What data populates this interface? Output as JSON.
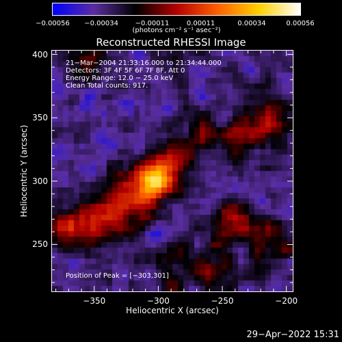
{
  "chart_data": {
    "type": "heatmap",
    "title": "Reconstructed RHESSI Image",
    "xlabel": "Heliocentric X (arcsec)",
    "ylabel": "Heliocentric Y (arcsec)",
    "xlim": [
      -383,
      -195
    ],
    "ylim": [
      213,
      403
    ],
    "x_ticks": [
      "−350",
      "−300",
      "−250",
      "−200"
    ],
    "x_tick_values": [
      -350,
      -300,
      -250,
      -200
    ],
    "y_ticks": [
      "250",
      "300",
      "350",
      "400"
    ],
    "y_tick_values": [
      250,
      300,
      350,
      400
    ],
    "colorbar": {
      "ticks": [
        "−0.00056",
        "−0.00034",
        "−0.00011",
        "0.00011",
        "0.00034",
        "0.00056"
      ],
      "tick_values": [
        -0.00056,
        -0.00034,
        -0.00011,
        0.00011,
        0.00034,
        0.00056
      ],
      "range": [
        -0.00056,
        0.00056
      ],
      "unit_label": "(photons cm⁻² s⁻¹ asec⁻²)",
      "colors": [
        "#0000ff",
        "#5a2ea0",
        "#000000",
        "#b40000",
        "#ff6000",
        "#ffd000",
        "#ffffff"
      ]
    },
    "annotations": [
      "21−Mar−2004 21:33:16.000 to 21:34:44.000",
      "Detectors: 3F 4F 5F 6F 7F 8F, Att 0",
      "Energy Range: 12.0 − 25.0 keV",
      "Clean     Total counts: 917."
    ],
    "peak_label": "Position of Peak = [−303,301]",
    "peak": [
      -303,
      301
    ]
  },
  "timestamp": "29−Apr−2022 15:31"
}
